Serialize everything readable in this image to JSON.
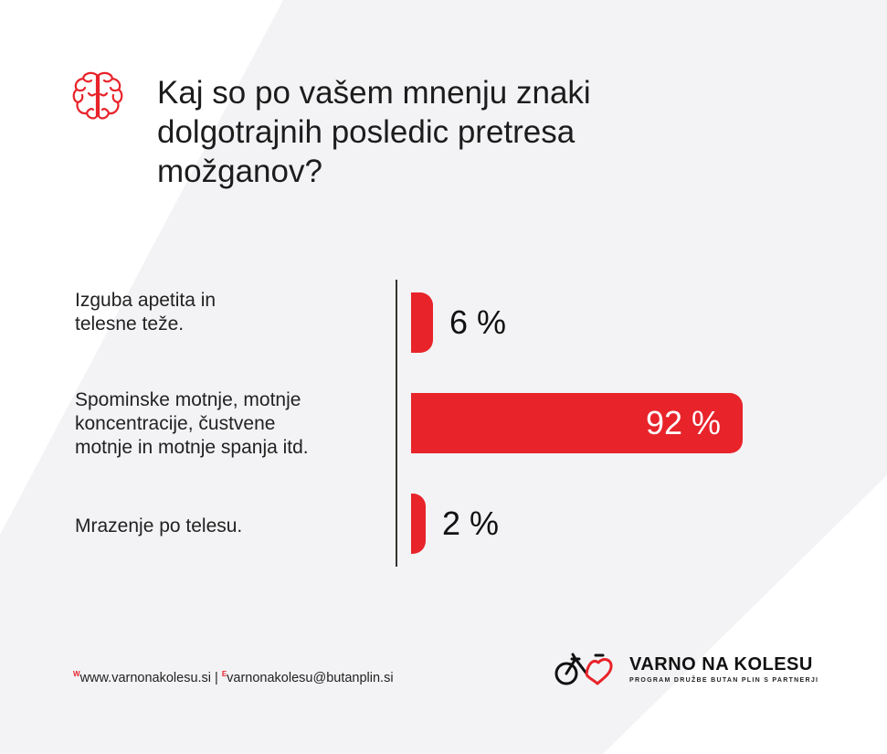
{
  "title": "Kaj so po vašem mnenju znaki dolgotrajnih posledic pretresa možganov?",
  "colors": {
    "accent": "#e8232a",
    "background_stripe": "#f3f3f5"
  },
  "icons": {
    "header": "brain-icon",
    "logo": "bicycle-heart-icon"
  },
  "chart_data": {
    "type": "bar",
    "orientation": "horizontal",
    "categories": [
      "Izguba apetita in\ntelesne teže.",
      "Spominske motnje, motnje\nkoncentracije, čustvene\nmotnje in motnje spanja itd.",
      "Mrazenje po telesu."
    ],
    "values": [
      6,
      92,
      2
    ],
    "value_labels": [
      "6 %",
      "92 %",
      "2 %"
    ],
    "xlim": [
      0,
      100
    ],
    "grid": false,
    "legend": "none"
  },
  "footer": {
    "web_prefix": "W",
    "web": "www.varnonakolesu.si",
    "separator": "|",
    "email_prefix": "E",
    "email": "varnonakolesu@butanplin.si"
  },
  "brand": {
    "name": "VARNO NA KOLESU",
    "tagline": "PROGRAM DRUŽBE BUTAN PLIN S PARTNERJI"
  }
}
